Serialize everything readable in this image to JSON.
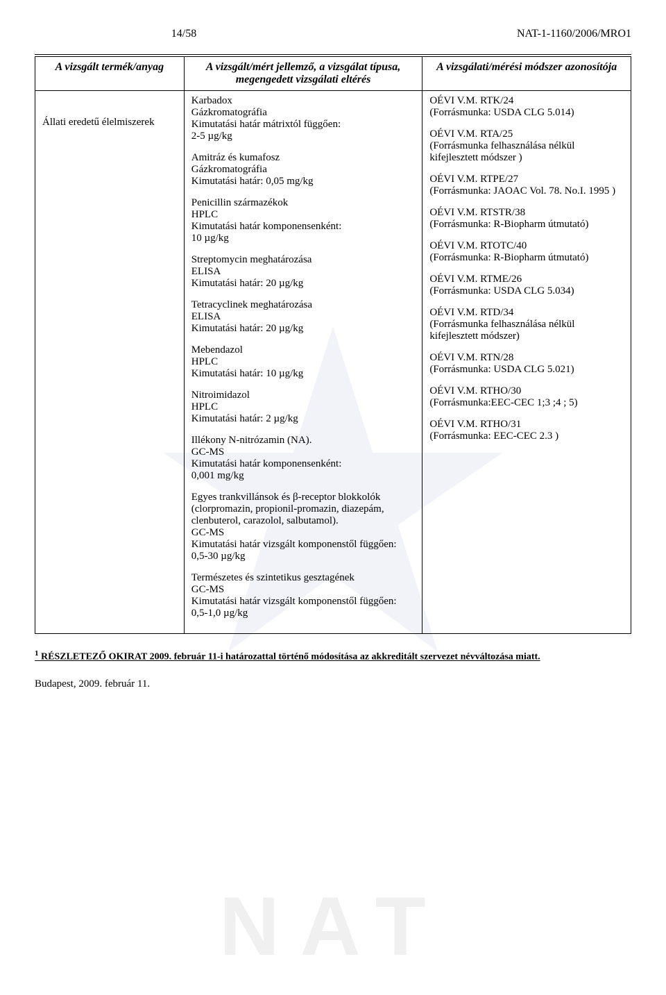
{
  "header": {
    "page_counter": "14/58",
    "doc_id": "NAT-1-1160/2006/MRO1"
  },
  "table": {
    "headers": {
      "col1": "A vizsgált termék/anyag",
      "col2": "A vizsgált/mért jellemző,\na vizsgálat típusa,\nmegengedett vizsgálati eltérés",
      "col3": "A vizsgálati/mérési módszer\nazonosítója"
    },
    "product": "Állati eredetű élelmiszerek",
    "rows": [
      {
        "middle": "Karbadox\nGázkromatográfia\nKimutatási határ mátrixtól függően:\n2-5 µg/kg",
        "right": "OÉVI V.M. RTK/24\n(Forrásmunka: USDA CLG 5.014)"
      },
      {
        "middle": "Amitráz és kumafosz\nGázkromatográfia\nKimutatási határ: 0,05 mg/kg",
        "right": "OÉVI V.M. RTA/25\n(Forrásmunka felhasználása nélkül kifejlesztett módszer )"
      },
      {
        "middle": "Penicillin származékok\nHPLC\nKimutatási határ komponensenként:\n10 µg/kg",
        "right": "OÉVI V.M. RTPE/27\n(Forrásmunka: JAOAC Vol. 78. No.I. 1995 )"
      },
      {
        "middle": "Streptomycin meghatározása\nELISA\nKimutatási határ: 20 µg/kg",
        "right": "OÉVI V.M. RTSTR/38\n(Forrásmunka: R-Biopharm útmutató)"
      },
      {
        "middle": "Tetracyclinek meghatározása\nELISA\nKimutatási határ: 20 µg/kg",
        "right": "OÉVI V.M. RTOTC/40\n(Forrásmunka: R-Biopharm útmutató)"
      },
      {
        "middle": "Mebendazol\nHPLC\nKimutatási határ: 10 µg/kg",
        "right": "OÉVI V.M. RTME/26\n(Forrásmunka: USDA CLG 5.034)"
      },
      {
        "middle": "Nitroimidazol\nHPLC\nKimutatási határ: 2 µg/kg",
        "right": "OÉVI V.M. RTD/34\n(Forrásmunka felhasználása nélkül kifejlesztett módszer)"
      },
      {
        "middle": "Illékony N-nitrózamin (NA).\nGC-MS\nKimutatási határ komponensenként:\n0,001 mg/kg",
        "right": "OÉVI V.M. RTN/28\n(Forrásmunka: USDA CLG  5.021)"
      },
      {
        "middle": "Egyes trankvillánsok és β-receptor blokkolók (clorpromazin, propionil-promazin, diazepám, clenbuterol, carazolol, salbutamol).\nGC-MS\nKimutatási határ vizsgált komponenstől függően:\n0,5-30 µg/kg",
        "right": "OÉVI V.M. RTHO/30\n(Forrásmunka:EEC-CEC 1;3 ;4 ; 5)"
      },
      {
        "middle": "Természetes és szintetikus gesztagének\nGC-MS\nKimutatási határ vizsgált komponenstől függően:\n0,5-1,0 µg/kg",
        "right": "OÉVI V.M. RTHO/31\n(Forrásmunka: EEC-CEC 2.3 )"
      }
    ]
  },
  "footnote": {
    "marker": "1",
    "text": "RÉSZLETEZŐ OKIRAT 2009. február 11-i határozattal történő módosítása az akkreditált szervezet névváltozása miatt."
  },
  "footer": "Budapest, 2009. február 11.",
  "watermark_text": "NAT"
}
